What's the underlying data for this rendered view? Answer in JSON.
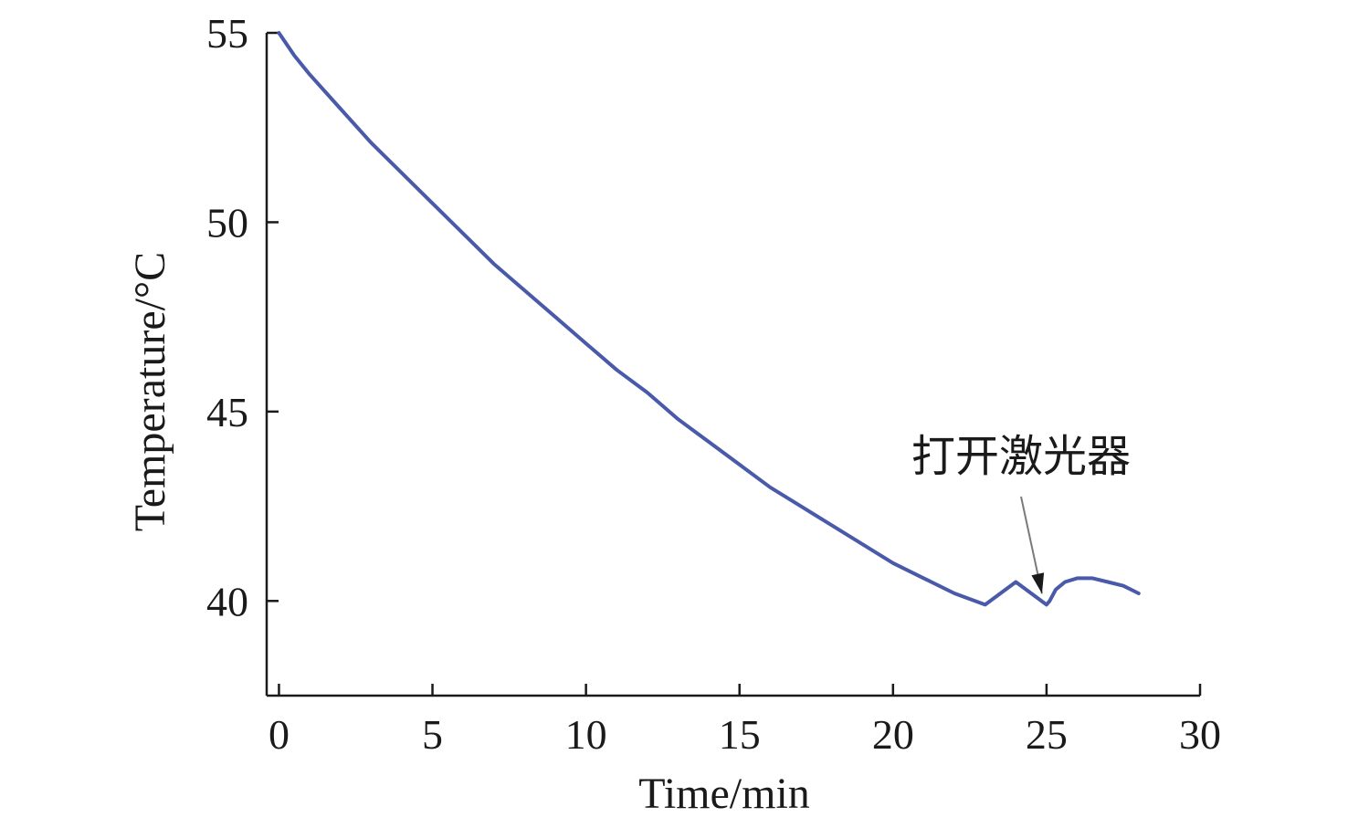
{
  "chart_data": {
    "type": "line",
    "title": "",
    "xlabel": "Time/min",
    "ylabel": "Temperature/°C",
    "xlim": [
      -0.4,
      30
    ],
    "ylim": [
      37.5,
      55
    ],
    "x_ticks": [
      0,
      5,
      10,
      15,
      20,
      25,
      30
    ],
    "y_ticks": [
      40,
      45,
      50,
      55
    ],
    "grid": false,
    "legend": "none",
    "series": [
      {
        "color": "#4a5aaa",
        "x": [
          0,
          0.5,
          1,
          2,
          3,
          4,
          5,
          6,
          7,
          8,
          9,
          10,
          11,
          12,
          13,
          14,
          15,
          16,
          17,
          18,
          19,
          20,
          21,
          22,
          23,
          24,
          25,
          25.1,
          25.3,
          25.6,
          26,
          26.5,
          27,
          27.5,
          28
        ],
        "y": [
          55.0,
          54.4,
          53.9,
          53.0,
          52.1,
          51.3,
          50.5,
          49.7,
          48.9,
          48.2,
          47.5,
          46.8,
          46.1,
          45.5,
          44.8,
          44.2,
          43.6,
          43.0,
          42.5,
          42.0,
          41.5,
          41.0,
          40.6,
          40.2,
          39.9,
          40.5,
          39.9,
          40.0,
          40.3,
          40.5,
          40.6,
          40.6,
          40.5,
          40.4,
          40.2
        ]
      }
    ],
    "annotations": [
      {
        "text": "打开激光器",
        "arrow_to": [
          25,
          40.0
        ]
      }
    ]
  }
}
